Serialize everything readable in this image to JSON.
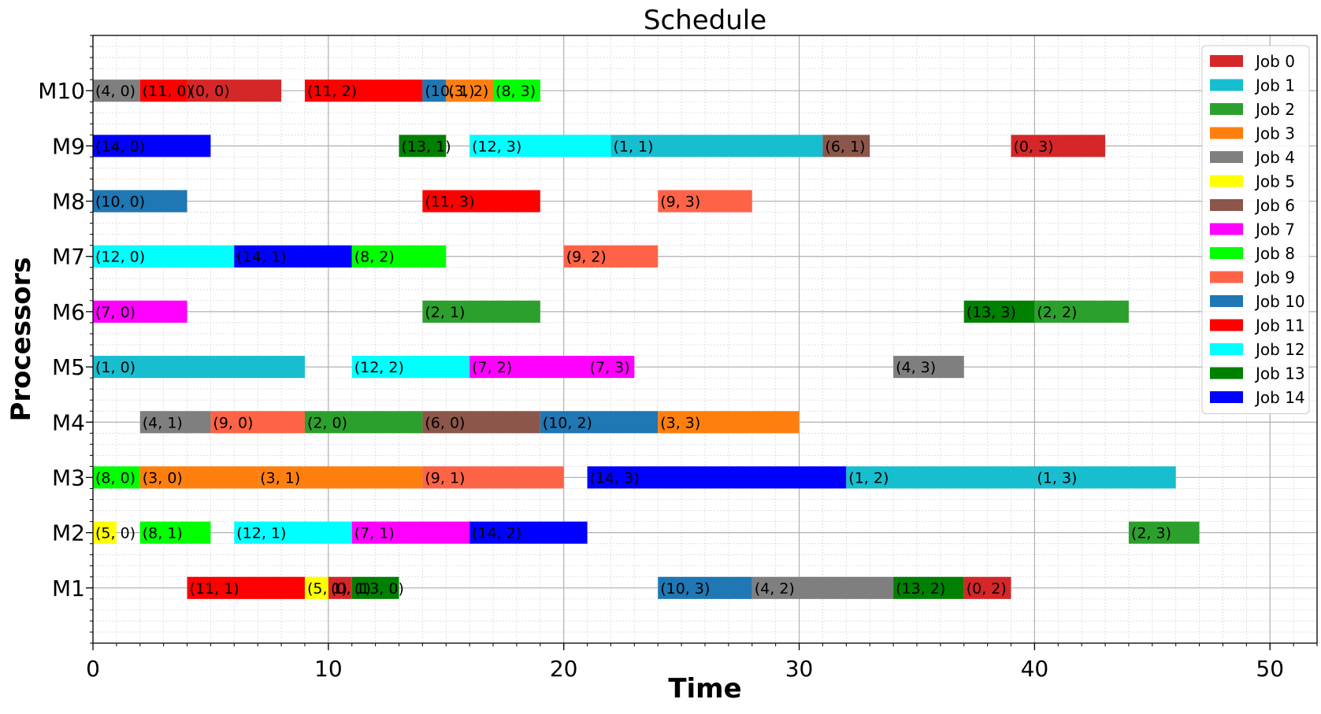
{
  "chart_data": {
    "type": "gantt",
    "title": "Schedule",
    "xlabel": "Time",
    "ylabel": "Processors",
    "xlim": [
      0,
      52
    ],
    "ylim": [
      0,
      11
    ],
    "x_ticks": [
      0,
      10,
      20,
      30,
      40,
      50
    ],
    "x_minor_step": 1,
    "y_minor_step": 0.2,
    "grid": true,
    "legend_position": "top-right",
    "processors": [
      "M1",
      "M2",
      "M3",
      "M4",
      "M5",
      "M6",
      "M7",
      "M8",
      "M9",
      "M10"
    ],
    "jobs": [
      {
        "name": "Job 0",
        "color": "#d62728"
      },
      {
        "name": "Job 1",
        "color": "#17becf"
      },
      {
        "name": "Job 2",
        "color": "#2ca02c"
      },
      {
        "name": "Job 3",
        "color": "#ff7f0e"
      },
      {
        "name": "Job 4",
        "color": "#7f7f7f"
      },
      {
        "name": "Job 5",
        "color": "#ffff00"
      },
      {
        "name": "Job 6",
        "color": "#8c564b"
      },
      {
        "name": "Job 7",
        "color": "#ff00ff"
      },
      {
        "name": "Job 8",
        "color": "#00ff00"
      },
      {
        "name": "Job 9",
        "color": "#ff6347"
      },
      {
        "name": "Job 10",
        "color": "#1f77b4"
      },
      {
        "name": "Job 11",
        "color": "#ff0000"
      },
      {
        "name": "Job 12",
        "color": "#00ffff"
      },
      {
        "name": "Job 13",
        "color": "#008000"
      },
      {
        "name": "Job 14",
        "color": "#0000ff"
      }
    ],
    "tasks": [
      {
        "processor": "M10",
        "job": 4,
        "start": 0,
        "end": 2,
        "label": "(4, 0)"
      },
      {
        "processor": "M10",
        "job": 11,
        "start": 2,
        "end": 4,
        "label": "(11, 0)"
      },
      {
        "processor": "M10",
        "job": 0,
        "start": 4,
        "end": 8,
        "label": "(0, 0)"
      },
      {
        "processor": "M10",
        "job": 11,
        "start": 9,
        "end": 14,
        "label": "(11, 2)"
      },
      {
        "processor": "M10",
        "job": 10,
        "start": 14,
        "end": 15,
        "label": "(10, 1)"
      },
      {
        "processor": "M10",
        "job": 3,
        "start": 15,
        "end": 17,
        "label": "(3, 2)"
      },
      {
        "processor": "M10",
        "job": 8,
        "start": 17,
        "end": 19,
        "label": "(8, 3)"
      },
      {
        "processor": "M9",
        "job": 14,
        "start": 0,
        "end": 5,
        "label": "(14, 0)"
      },
      {
        "processor": "M9",
        "job": 13,
        "start": 13,
        "end": 15,
        "label": "(13, 1)"
      },
      {
        "processor": "M9",
        "job": 12,
        "start": 16,
        "end": 22,
        "label": "(12, 3)"
      },
      {
        "processor": "M9",
        "job": 1,
        "start": 22,
        "end": 31,
        "label": "(1, 1)"
      },
      {
        "processor": "M9",
        "job": 6,
        "start": 31,
        "end": 33,
        "label": "(6, 1)"
      },
      {
        "processor": "M9",
        "job": 0,
        "start": 39,
        "end": 43,
        "label": "(0, 3)"
      },
      {
        "processor": "M8",
        "job": 10,
        "start": 0,
        "end": 4,
        "label": "(10, 0)"
      },
      {
        "processor": "M8",
        "job": 11,
        "start": 14,
        "end": 19,
        "label": "(11, 3)"
      },
      {
        "processor": "M8",
        "job": 9,
        "start": 24,
        "end": 28,
        "label": "(9, 3)"
      },
      {
        "processor": "M7",
        "job": 12,
        "start": 0,
        "end": 6,
        "label": "(12, 0)"
      },
      {
        "processor": "M7",
        "job": 14,
        "start": 6,
        "end": 11,
        "label": "(14, 1)"
      },
      {
        "processor": "M7",
        "job": 8,
        "start": 11,
        "end": 15,
        "label": "(8, 2)"
      },
      {
        "processor": "M7",
        "job": 9,
        "start": 20,
        "end": 24,
        "label": "(9, 2)"
      },
      {
        "processor": "M6",
        "job": 7,
        "start": 0,
        "end": 4,
        "label": "(7, 0)"
      },
      {
        "processor": "M6",
        "job": 2,
        "start": 14,
        "end": 19,
        "label": "(2, 1)"
      },
      {
        "processor": "M6",
        "job": 13,
        "start": 37,
        "end": 40,
        "label": "(13, 3)"
      },
      {
        "processor": "M6",
        "job": 2,
        "start": 40,
        "end": 44,
        "label": "(2, 2)"
      },
      {
        "processor": "M5",
        "job": 1,
        "start": 0,
        "end": 9,
        "label": "(1, 0)"
      },
      {
        "processor": "M5",
        "job": 12,
        "start": 11,
        "end": 16,
        "label": "(12, 2)"
      },
      {
        "processor": "M5",
        "job": 7,
        "start": 16,
        "end": 21,
        "label": "(7, 2)"
      },
      {
        "processor": "M5",
        "job": 7,
        "start": 21,
        "end": 23,
        "label": "(7, 3)"
      },
      {
        "processor": "M5",
        "job": 4,
        "start": 34,
        "end": 37,
        "label": "(4, 3)"
      },
      {
        "processor": "M4",
        "job": 4,
        "start": 2,
        "end": 5,
        "label": "(4, 1)"
      },
      {
        "processor": "M4",
        "job": 9,
        "start": 5,
        "end": 9,
        "label": "(9, 0)"
      },
      {
        "processor": "M4",
        "job": 2,
        "start": 9,
        "end": 14,
        "label": "(2, 0)"
      },
      {
        "processor": "M4",
        "job": 6,
        "start": 14,
        "end": 19,
        "label": "(6, 0)"
      },
      {
        "processor": "M4",
        "job": 10,
        "start": 19,
        "end": 24,
        "label": "(10, 2)"
      },
      {
        "processor": "M4",
        "job": 3,
        "start": 24,
        "end": 30,
        "label": "(3, 3)"
      },
      {
        "processor": "M3",
        "job": 8,
        "start": 0,
        "end": 2,
        "label": "(8, 0)"
      },
      {
        "processor": "M3",
        "job": 3,
        "start": 2,
        "end": 7,
        "label": "(3, 0)"
      },
      {
        "processor": "M3",
        "job": 3,
        "start": 7,
        "end": 14,
        "label": "(3, 1)"
      },
      {
        "processor": "M3",
        "job": 9,
        "start": 14,
        "end": 20,
        "label": "(9, 1)"
      },
      {
        "processor": "M3",
        "job": 14,
        "start": 21,
        "end": 32,
        "label": "(14, 3)"
      },
      {
        "processor": "M3",
        "job": 1,
        "start": 32,
        "end": 40,
        "label": "(1, 2)"
      },
      {
        "processor": "M3",
        "job": 1,
        "start": 40,
        "end": 46,
        "label": "(1, 3)"
      },
      {
        "processor": "M2",
        "job": 5,
        "start": 0,
        "end": 1,
        "label": "(5, 0)"
      },
      {
        "processor": "M2",
        "job": 8,
        "start": 2,
        "end": 5,
        "label": "(8, 1)"
      },
      {
        "processor": "M2",
        "job": 12,
        "start": 6,
        "end": 11,
        "label": "(12, 1)"
      },
      {
        "processor": "M2",
        "job": 7,
        "start": 11,
        "end": 16,
        "label": "(7, 1)"
      },
      {
        "processor": "M2",
        "job": 14,
        "start": 16,
        "end": 21,
        "label": "(14, 2)"
      },
      {
        "processor": "M2",
        "job": 2,
        "start": 44,
        "end": 47,
        "label": "(2, 3)"
      },
      {
        "processor": "M1",
        "job": 11,
        "start": 4,
        "end": 9,
        "label": "(11, 1)"
      },
      {
        "processor": "M1",
        "job": 5,
        "start": 9,
        "end": 10,
        "label": "(5, 1)"
      },
      {
        "processor": "M1",
        "job": 0,
        "start": 10,
        "end": 11,
        "label": "(0, 1)"
      },
      {
        "processor": "M1",
        "job": 13,
        "start": 11,
        "end": 13,
        "label": "(13, 0)"
      },
      {
        "processor": "M1",
        "job": 10,
        "start": 24,
        "end": 28,
        "label": "(10, 3)"
      },
      {
        "processor": "M1",
        "job": 4,
        "start": 28,
        "end": 34,
        "label": "(4, 2)"
      },
      {
        "processor": "M1",
        "job": 13,
        "start": 34,
        "end": 37,
        "label": "(13, 2)"
      },
      {
        "processor": "M1",
        "job": 0,
        "start": 37,
        "end": 39,
        "label": "(0, 2)"
      }
    ]
  }
}
